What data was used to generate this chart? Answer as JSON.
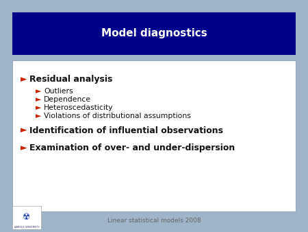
{
  "title": "Model diagnostics",
  "title_bg_color": "#00008B",
  "title_text_color": "#FFFFFF",
  "slide_bg_color": "#A0B4C8",
  "content_bg_color": "#FFFFFF",
  "content_border_color": "#9AAABB",
  "footer_text": "Linear statistical models 2008",
  "footer_color": "#666666",
  "bullet_l1_color": "#CC2200",
  "bullet_l2_color": "#CC2200",
  "bullet_l2_items": [
    "Outliers",
    "Dependence",
    "Heteroscedasticity",
    "Violations of distributional assumptions"
  ],
  "text_color": "#111111",
  "title_fontsize": 11,
  "l1_fontsize": 9,
  "l2_fontsize": 7.8,
  "footer_fontsize": 6.5,
  "arrow": "►"
}
